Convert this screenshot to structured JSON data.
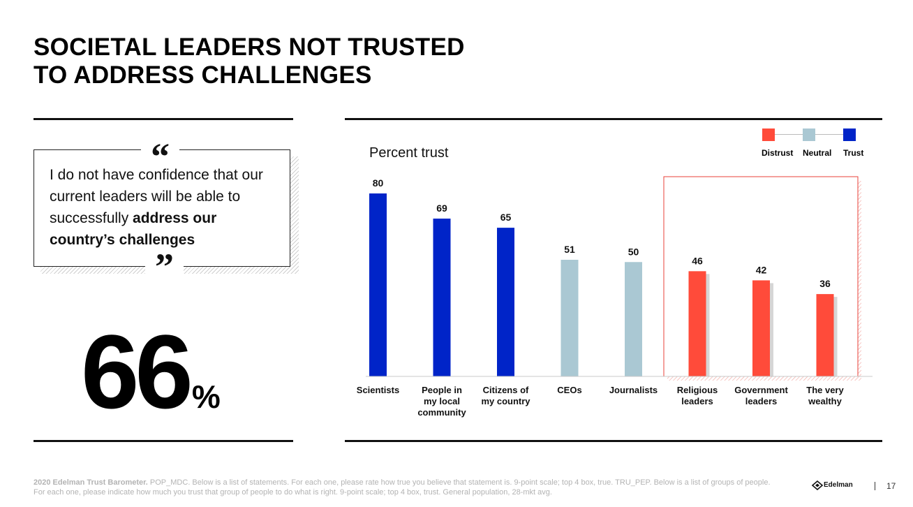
{
  "slide": {
    "title_line1": "SOCIETAL LEADERS NOT TRUSTED",
    "title_line2": "TO ADDRESS CHALLENGES",
    "page_number": "17"
  },
  "quote": {
    "open_mark": "“",
    "close_mark": "”",
    "text_plain": "I do not have confidence that our current leaders will be able to successfully ",
    "text_bold": "address our country’s challenges"
  },
  "stat": {
    "value": "66",
    "unit": "%"
  },
  "legend": {
    "items": [
      {
        "label": "Distrust",
        "color": "#ff4b3a"
      },
      {
        "label": "Neutral",
        "color": "#aac8d3"
      },
      {
        "label": "Trust",
        "color": "#0024c8"
      }
    ]
  },
  "chart_data": {
    "type": "bar",
    "title": "Percent trust",
    "xlabel": "",
    "ylabel": "",
    "ylim": [
      0,
      80
    ],
    "categories": [
      "Scientists",
      "People in my local community",
      "Citizens of my country",
      "CEOs",
      "Journalists",
      "Religious leaders",
      "Government leaders",
      "The very wealthy"
    ],
    "category_lines": [
      [
        "Scientists"
      ],
      [
        "People in",
        "my local",
        "community"
      ],
      [
        "Citizens of",
        "my country"
      ],
      [
        "CEOs"
      ],
      [
        "Journalists"
      ],
      [
        "Religious",
        "leaders"
      ],
      [
        "Government",
        "leaders"
      ],
      [
        "The very",
        "wealthy"
      ]
    ],
    "values": [
      80,
      69,
      65,
      51,
      50,
      46,
      42,
      36
    ],
    "bar_classes": [
      "Trust",
      "Trust",
      "Trust",
      "Neutral",
      "Neutral",
      "Distrust",
      "Distrust",
      "Distrust"
    ],
    "colors": {
      "Trust": "#0024c8",
      "Neutral": "#aac8d3",
      "Distrust": "#ff4b3a"
    },
    "highlight": [
      "Religious leaders",
      "Government leaders",
      "The very wealthy"
    ],
    "highlight_color": "#e8413a"
  },
  "footer": {
    "source_bold": "2020 Edelman Trust Barometer.",
    "source_text": " POP_MDC. Below is a list of statements. For each one, please rate how true you believe that statement is. 9-point scale; top 4 box, true. TRU_PEP. Below is a list of groups of people. For each one, please indicate how much you trust that group of people to do what is right. 9-point scale; top 4 box, trust. General population, 28-mkt avg.",
    "brand": "Edelman"
  }
}
